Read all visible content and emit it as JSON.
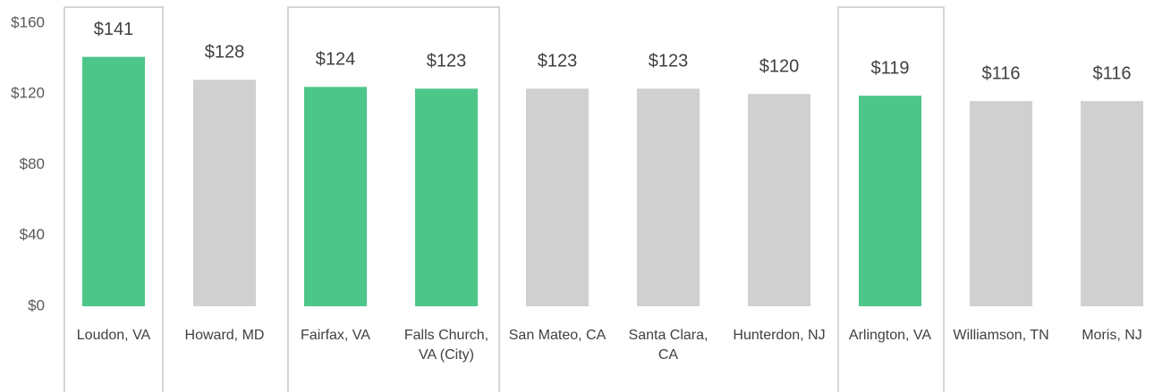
{
  "chart_data": {
    "type": "bar",
    "categories": [
      "Loudon, VA",
      "Howard, MD",
      "Fairfax, VA",
      "Falls Church, VA (City)",
      "San Mateo, CA",
      "Santa Clara, CA",
      "Hunterdon, NJ",
      "Arlington, VA",
      "Williamson, TN",
      "Moris, NJ"
    ],
    "values": [
      141,
      128,
      124,
      123,
      123,
      123,
      120,
      119,
      116,
      116
    ],
    "value_labels": [
      "$141",
      "$128",
      "$124",
      "$123",
      "$123",
      "$123",
      "$120",
      "$119",
      "$116",
      "$116"
    ],
    "colors": [
      "#4dc68a",
      "#d0d0d0",
      "#4dc68a",
      "#4dc68a",
      "#d0d0d0",
      "#d0d0d0",
      "#d0d0d0",
      "#4dc68a",
      "#d0d0d0",
      "#d0d0d0"
    ],
    "ylim": [
      0,
      160
    ],
    "yticks": [
      {
        "value": 0,
        "label": "$0"
      },
      {
        "value": 40,
        "label": "$40"
      },
      {
        "value": 80,
        "label": "$80"
      },
      {
        "value": 120,
        "label": "$120"
      },
      {
        "value": 160,
        "label": "$160"
      }
    ],
    "grid": false
  }
}
